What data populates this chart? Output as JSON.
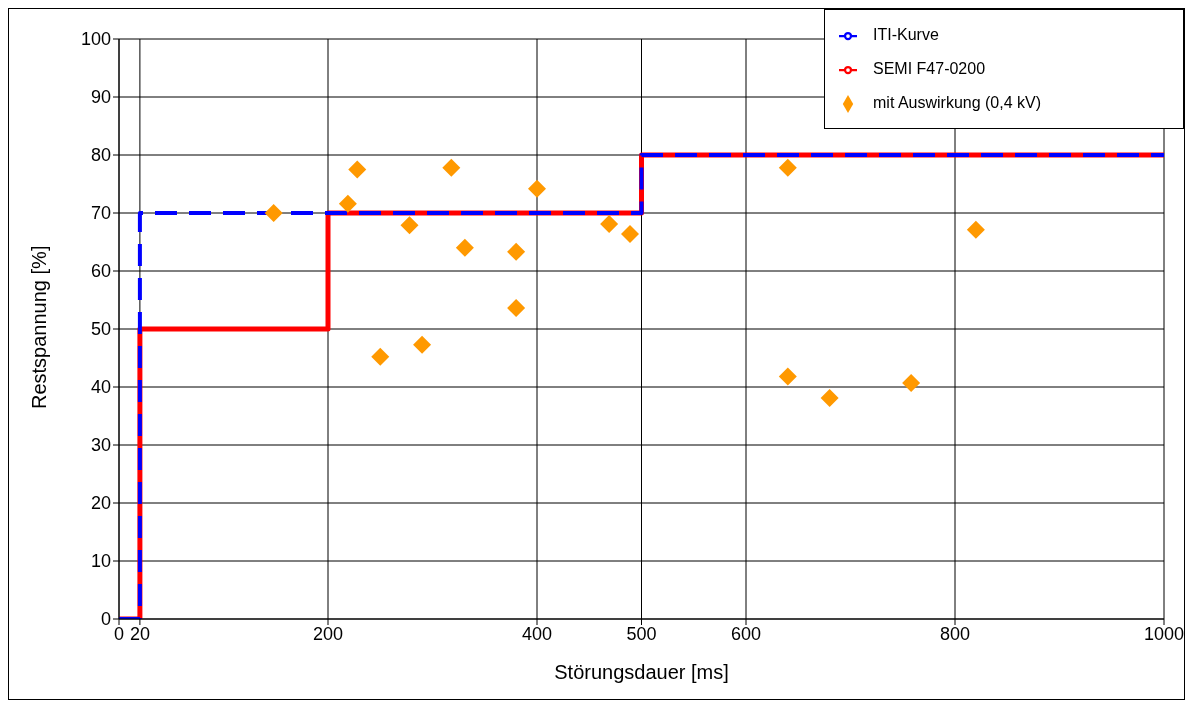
{
  "chart_data": {
    "type": "scatter",
    "xlabel": "Störungsdauer [ms]",
    "ylabel": "Restspannung [%]",
    "xlim": [
      0,
      1000
    ],
    "xticks": [
      0,
      20,
      200,
      400,
      500,
      600,
      800,
      1000
    ],
    "ylim": [
      0,
      100
    ],
    "yticks": [
      0,
      10,
      20,
      30,
      40,
      50,
      60,
      70,
      80,
      90,
      100
    ],
    "grid": true,
    "legend": "top right",
    "series": [
      {
        "name": "mit Auswirkung (0,4 kV)",
        "type": "scatter",
        "marker": "diamond",
        "color": "#ff9900",
        "x": [
          148,
          219,
          228,
          250,
          278,
          290,
          318,
          331,
          380,
          380,
          400,
          469,
          489,
          640,
          640,
          680,
          758,
          820
        ],
        "values": [
          70,
          71.6,
          77.5,
          45.2,
          67.9,
          47.3,
          77.8,
          64,
          63.3,
          53.6,
          74.2,
          68.1,
          66.4,
          77.8,
          41.8,
          38.1,
          40.7,
          67.1
        ]
      },
      {
        "name": "ITI-Kurve",
        "type": "step",
        "line_style": "dashed",
        "color": "#0000ff",
        "x": [
          0,
          20,
          500,
          1000
        ],
        "values": [
          0,
          70,
          80,
          80
        ]
      },
      {
        "name": "SEMI F47-0200",
        "type": "step",
        "line_style": "solid",
        "color": "#ff0000",
        "x": [
          0,
          20,
          200,
          500,
          1000
        ],
        "values": [
          0,
          50,
          70,
          80,
          80
        ]
      }
    ]
  }
}
